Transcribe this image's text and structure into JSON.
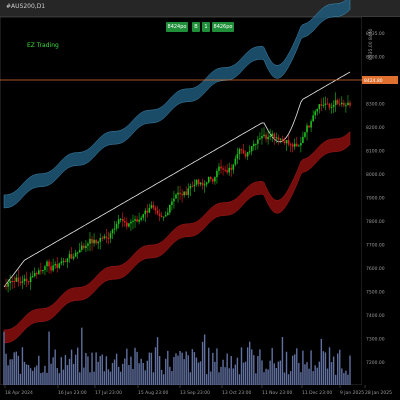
{
  "window": {
    "title": "#AUS200,D1"
  },
  "watermark": "EZ Trading",
  "trade_panel": {
    "sell_price": "8424",
    "sell_suffix": "po",
    "lots": "1",
    "buy_price": "8426",
    "buy_suffix": "po",
    "sell_label": "B",
    "buy_label": "B"
  },
  "price_axis": {
    "current_price": "8424.80",
    "labels": [
      "8635.00",
      "8600.00",
      "8400.00",
      "8300.00",
      "8200.00",
      "8100.00",
      "8000.00",
      "7900.00",
      "7800.00",
      "7700.00",
      "7600.00",
      "7500.00",
      "7400.00",
      "7300.00",
      "7200.00"
    ],
    "vertical_label": "8335.00 8440"
  },
  "time_axis": {
    "labels": [
      "18 Apr 2024",
      "16 Jun 23:00",
      "17 Jul 23:00",
      "15 Aug 23:00",
      "13 Sep 23:00",
      "13 Oct 23:00",
      "11 Nov 23:00",
      "11 Dec 23:00",
      "9 Jan 2025",
      "28 Jan 2025"
    ]
  },
  "colors": {
    "background": "#000000",
    "upper_band": "#1f5a7a",
    "lower_band": "#8a1010",
    "ma_line": "#e8e8e8",
    "bull": "#20c020",
    "bear": "#e02020",
    "price_line": "#e07030",
    "volume": "#6070a0"
  }
}
